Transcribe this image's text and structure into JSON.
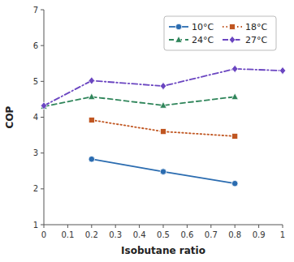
{
  "chart_data": {
    "type": "line",
    "x_label": "Isobutane ratio",
    "y_label": "COP",
    "series": [
      {
        "name": "10°C",
        "x": [
          0.2,
          0.5,
          0.8
        ],
        "values": [
          2.83,
          2.48,
          2.15
        ],
        "marker": "circle",
        "line_style": "solid"
      },
      {
        "name": "18°C",
        "x": [
          0.2,
          0.5,
          0.8
        ],
        "values": [
          3.92,
          3.6,
          3.47
        ],
        "marker": "square",
        "line_style": "dotted"
      },
      {
        "name": "24°C",
        "x": [
          0.0,
          0.2,
          0.5,
          0.8
        ],
        "values": [
          4.3,
          4.57,
          4.33,
          4.57
        ],
        "marker": "triangle",
        "line_style": "dashed"
      },
      {
        "name": "27°C",
        "x": [
          0.0,
          0.2,
          0.5,
          0.8,
          1.0
        ],
        "values": [
          4.32,
          5.02,
          4.87,
          5.35,
          5.3
        ],
        "marker": "diamond",
        "line_style": "dashdot"
      }
    ],
    "xlim": [
      0,
      1
    ],
    "ylim": [
      1,
      7
    ],
    "xticks": [
      0,
      0.1,
      0.2,
      0.3,
      0.4,
      0.5,
      0.6,
      0.7,
      0.8,
      0.9,
      1
    ],
    "yticks": [
      1,
      2,
      3,
      4,
      5,
      6,
      7
    ],
    "grid": false,
    "legend": "upper right"
  }
}
